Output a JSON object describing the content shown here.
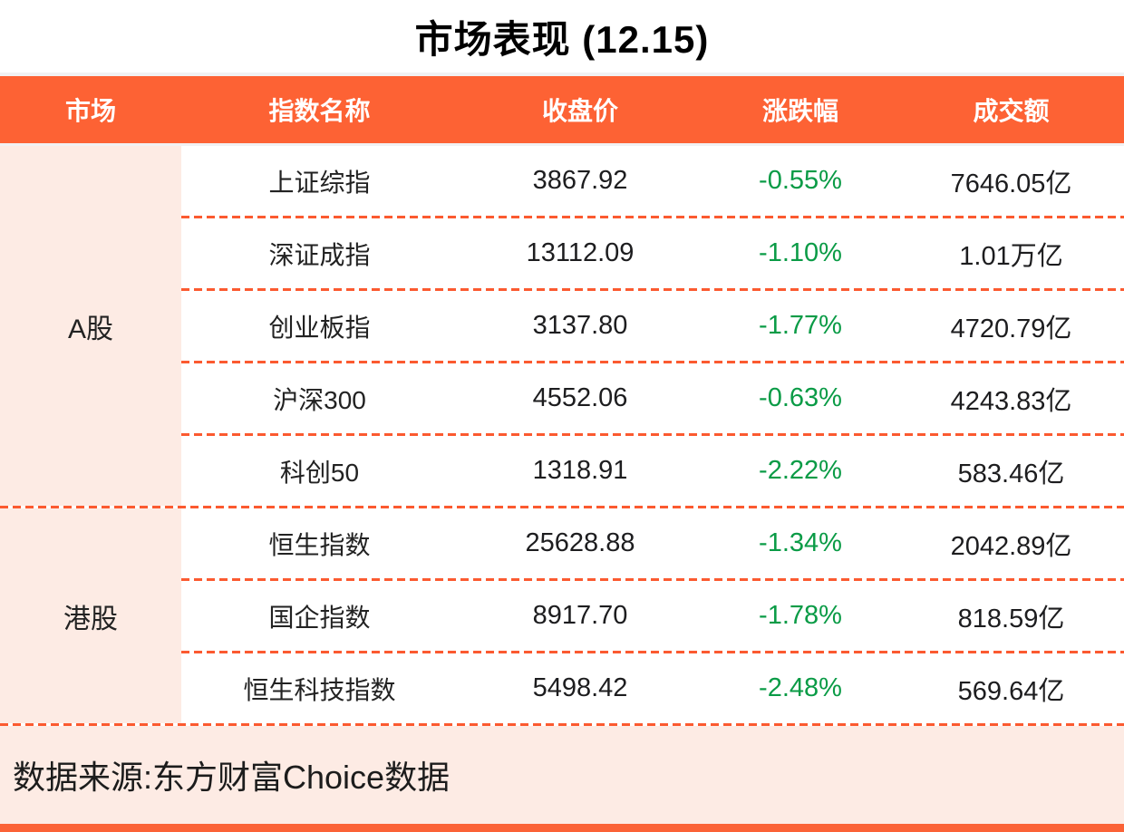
{
  "colors": {
    "accent_orange": "#fd6234",
    "dash_orange": "#fb5a30",
    "light_pink": "#fdebe4",
    "negative_green": "#0a9b46",
    "header_text": "#ffffff",
    "body_text": "#1d1d1f"
  },
  "chart_data": {
    "type": "table",
    "title": "市场表现 (12.15)",
    "columns": [
      "市场",
      "指数名称",
      "收盘价",
      "涨跌幅",
      "成交额"
    ],
    "sections": [
      {
        "market": "A股",
        "rows": [
          {
            "name": "上证综指",
            "close": "3867.92",
            "change": "-0.55%",
            "turnover": "7646.05亿"
          },
          {
            "name": "深证成指",
            "close": "13112.09",
            "change": "-1.10%",
            "turnover": "1.01万亿"
          },
          {
            "name": "创业板指",
            "close": "3137.80",
            "change": "-1.77%",
            "turnover": "4720.79亿"
          },
          {
            "name": "沪深300",
            "close": "4552.06",
            "change": "-0.63%",
            "turnover": "4243.83亿"
          },
          {
            "name": "科创50",
            "close": "1318.91",
            "change": "-2.22%",
            "turnover": "583.46亿"
          }
        ]
      },
      {
        "market": "港股",
        "rows": [
          {
            "name": "恒生指数",
            "close": "25628.88",
            "change": "-1.34%",
            "turnover": "2042.89亿"
          },
          {
            "name": "国企指数",
            "close": "8917.70",
            "change": "-1.78%",
            "turnover": "818.59亿"
          },
          {
            "name": "恒生科技指数",
            "close": "5498.42",
            "change": "-2.48%",
            "turnover": "569.64亿"
          }
        ]
      }
    ]
  },
  "footer": {
    "source": "数据来源:东方财富Choice数据"
  }
}
